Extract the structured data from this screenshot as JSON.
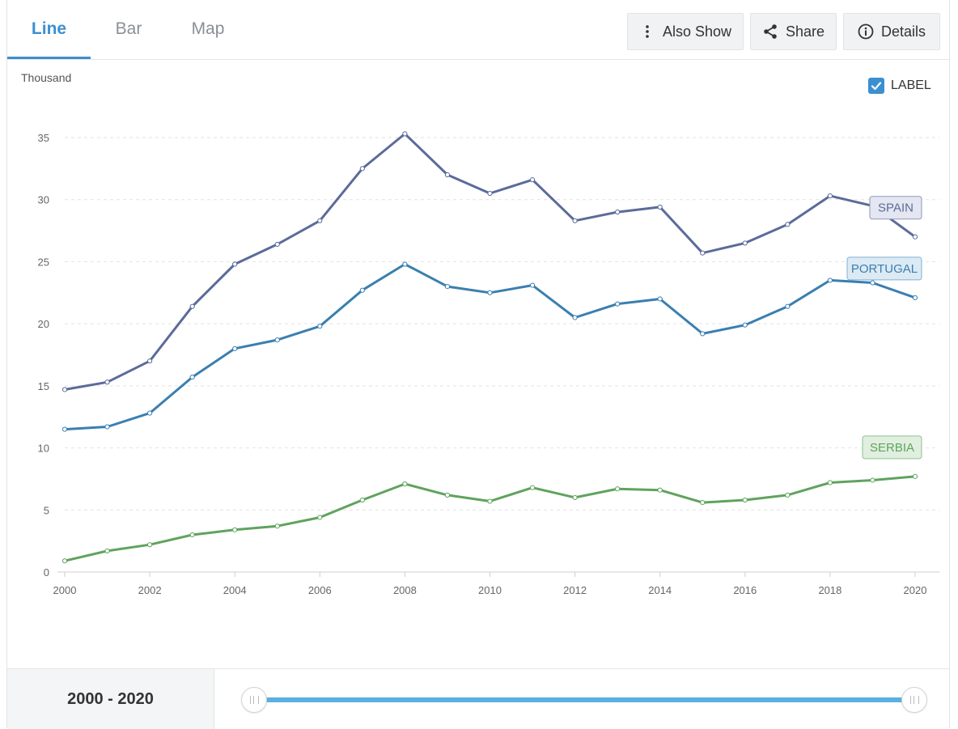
{
  "tabs": [
    {
      "label": "Line"
    },
    {
      "label": "Bar"
    },
    {
      "label": "Map"
    }
  ],
  "toolbar": {
    "also_show_label": "Also Show",
    "share_label": "Share",
    "details_label": "Details"
  },
  "icons": {
    "also_show": "vertical-dots-icon",
    "share": "share-icon",
    "details": "info-icon",
    "label_toggle": "checkbox-checked-icon"
  },
  "label_toggle": {
    "text": "LABEL",
    "checked": true
  },
  "footer": {
    "range_text": "2000 - 2020",
    "slider_start": 2000,
    "slider_end": 2020
  },
  "colors": {
    "accent": "#3b8fd0",
    "spain": "#5b6b9a",
    "portugal": "#3a7fb0",
    "serbia": "#5fa35e"
  },
  "chart_data": {
    "type": "line",
    "title": "",
    "xlabel": "",
    "ylabel": "Thousand",
    "xlim": [
      2000,
      2020
    ],
    "ylim": [
      0,
      35
    ],
    "yticks": [
      0,
      5,
      10,
      15,
      20,
      25,
      30,
      35
    ],
    "xticks": [
      2000,
      2002,
      2004,
      2006,
      2008,
      2010,
      2012,
      2014,
      2016,
      2018,
      2020
    ],
    "grid": true,
    "x": [
      2000,
      2001,
      2002,
      2003,
      2004,
      2005,
      2006,
      2007,
      2008,
      2009,
      2010,
      2011,
      2012,
      2013,
      2014,
      2015,
      2016,
      2017,
      2018,
      2019,
      2020
    ],
    "series": [
      {
        "name": "SPAIN",
        "color": "#5b6b9a",
        "label_bg": "#e4e6f1",
        "label_border": "#8f97bf",
        "values": [
          14.7,
          15.3,
          17.0,
          21.4,
          24.8,
          26.4,
          28.3,
          32.5,
          35.3,
          32.0,
          30.5,
          31.6,
          28.3,
          29.0,
          29.4,
          25.7,
          26.5,
          28.0,
          30.3,
          29.5,
          27.0
        ]
      },
      {
        "name": "PORTUGAL",
        "color": "#3a7fb0",
        "label_bg": "#dceaf4",
        "label_border": "#7fb0d3",
        "values": [
          11.5,
          11.7,
          12.8,
          15.7,
          18.0,
          18.7,
          19.8,
          22.7,
          24.8,
          23.0,
          22.5,
          23.1,
          20.5,
          21.6,
          22.0,
          19.2,
          19.9,
          21.4,
          23.5,
          23.3,
          22.1
        ]
      },
      {
        "name": "SERBIA",
        "color": "#5fa35e",
        "label_bg": "#e0efdf",
        "label_border": "#8ec28d",
        "values": [
          0.9,
          1.7,
          2.2,
          3.0,
          3.4,
          3.7,
          4.4,
          5.8,
          7.1,
          6.2,
          5.7,
          6.8,
          6.0,
          6.7,
          6.6,
          5.6,
          5.8,
          6.2,
          7.2,
          7.4,
          7.7
        ]
      }
    ]
  }
}
